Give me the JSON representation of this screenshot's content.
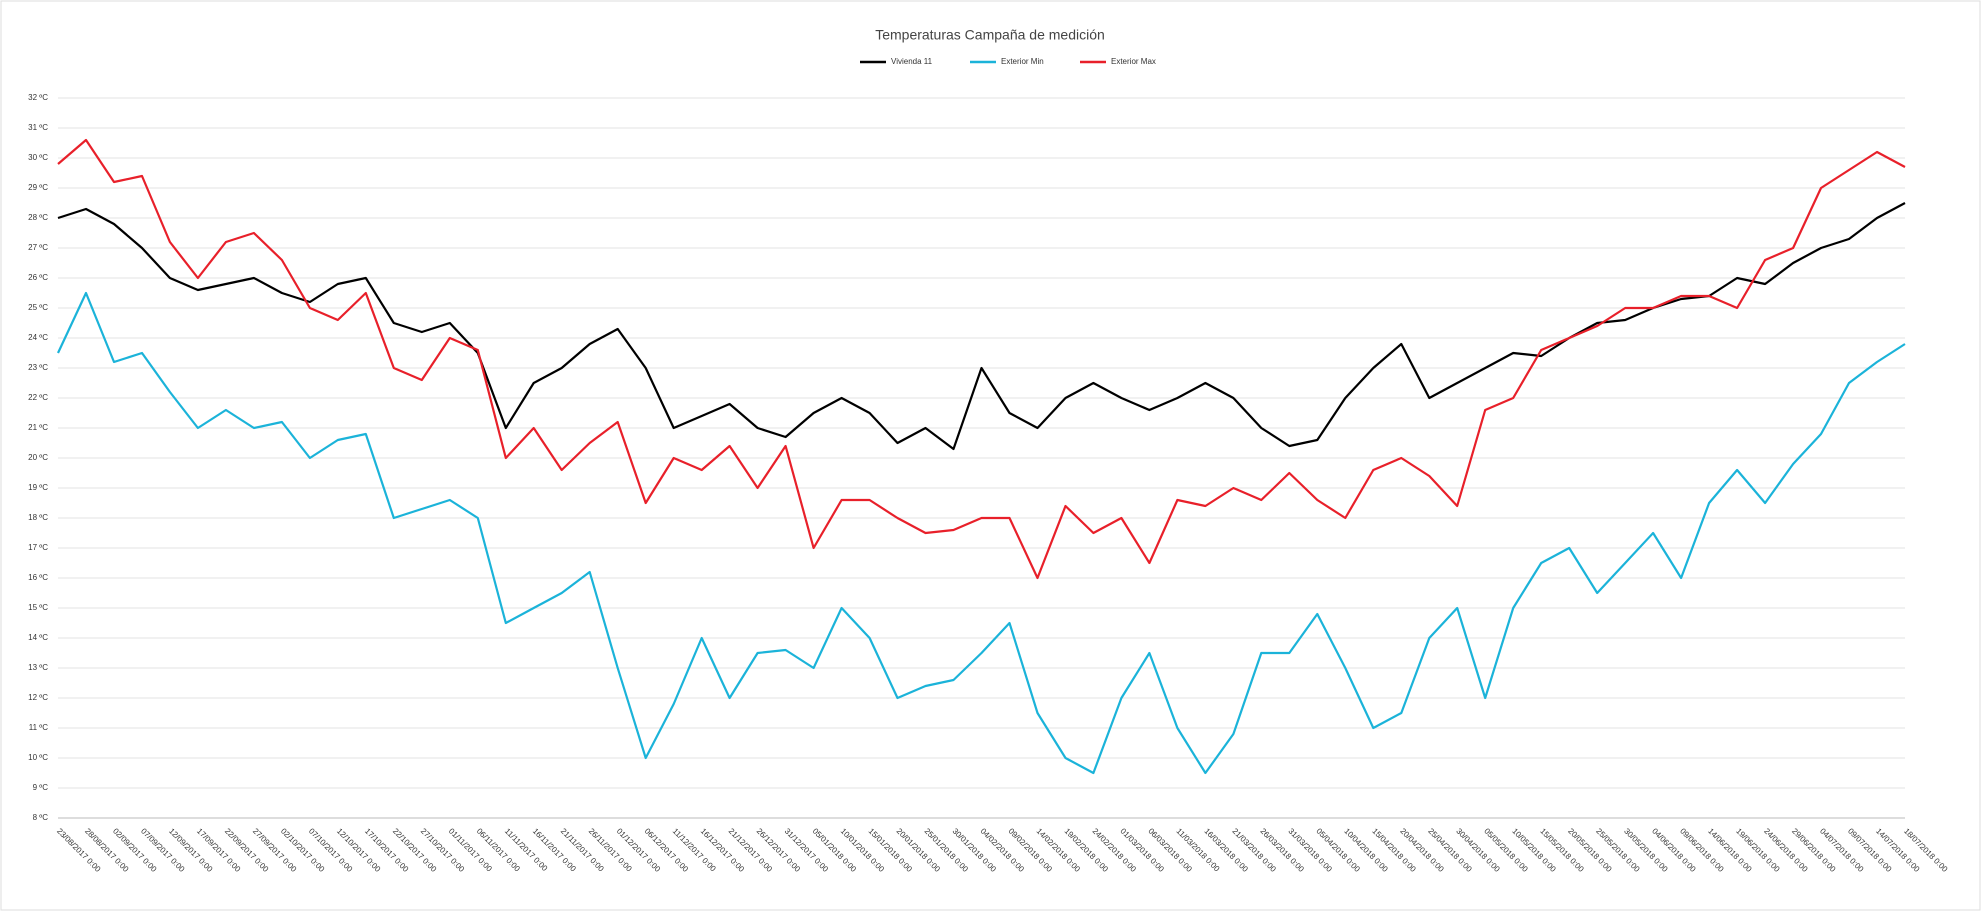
{
  "chart_data": {
    "type": "line",
    "title": "Temperaturas Campaña de medición",
    "categories": [
      "23/08/2017 0:00",
      "28/08/2017 0:00",
      "02/09/2017 0:00",
      "07/09/2017 0:00",
      "12/09/2017 0:00",
      "17/09/2017 0:00",
      "22/09/2017 0:00",
      "27/09/2017 0:00",
      "02/10/2017 0:00",
      "07/10/2017 0:00",
      "12/10/2017 0:00",
      "17/10/2017 0:00",
      "22/10/2017 0:00",
      "27/10/2017 0:00",
      "01/11/2017 0:00",
      "06/11/2017 0:00",
      "11/11/2017 0:00",
      "16/11/2017 0:00",
      "21/11/2017 0:00",
      "26/11/2017 0:00",
      "01/12/2017 0:00",
      "06/12/2017 0:00",
      "11/12/2017 0:00",
      "16/12/2017 0:00",
      "21/12/2017 0:00",
      "26/12/2017 0:00",
      "31/12/2017 0:00",
      "05/01/2018 0:00",
      "10/01/2018 0:00",
      "15/01/2018 0:00",
      "20/01/2018 0:00",
      "25/01/2018 0:00",
      "30/01/2018 0:00",
      "04/02/2018 0:00",
      "09/02/2018 0:00",
      "14/02/2018 0:00",
      "19/02/2018 0:00",
      "24/02/2018 0:00",
      "01/03/2018 0:00",
      "06/03/2018 0:00",
      "11/03/2018 0:00",
      "16/03/2018 0:00",
      "21/03/2018 0:00",
      "26/03/2018 0:00",
      "31/03/2018 0:00",
      "05/04/2018 0:00",
      "10/04/2018 0:00",
      "15/04/2018 0:00",
      "20/04/2018 0:00",
      "25/04/2018 0:00",
      "30/04/2018 0:00",
      "05/05/2018 0:00",
      "10/05/2018 0:00",
      "15/05/2018 0:00",
      "20/05/2018 0:00",
      "25/05/2018 0:00",
      "30/05/2018 0:00",
      "04/06/2018 0:00",
      "09/06/2018 0:00",
      "14/06/2018 0:00",
      "19/06/2018 0:00",
      "24/06/2018 0:00",
      "29/06/2018 0:00",
      "04/07/2018 0:00",
      "09/07/2018 0:00",
      "14/07/2018 0:00",
      "18/07/2018 0:00"
    ],
    "series": [
      {
        "name": "Vivienda 11",
        "color": "#000000",
        "values": [
          28,
          28.3,
          27.8,
          27,
          26,
          25.6,
          25.8,
          26,
          25.5,
          25.2,
          25.8,
          26,
          24.5,
          24.2,
          24.5,
          23.5,
          21,
          22.5,
          23,
          23.8,
          24.3,
          23,
          21,
          21.4,
          21.8,
          21,
          20.7,
          21.5,
          22,
          21.5,
          20.5,
          21,
          20.3,
          23,
          21.5,
          21,
          22,
          22.5,
          22,
          21.6,
          22,
          22.5,
          22,
          21,
          20.4,
          20.6,
          22,
          23,
          23.8,
          22,
          22.5,
          23,
          23.5,
          23.4,
          24,
          24.5,
          24.6,
          25,
          25.3,
          25.4,
          26,
          25.8,
          26.5,
          27,
          27.3,
          28,
          28.5
        ]
      },
      {
        "name": "Exterior Min",
        "color": "#1bb3d9",
        "values": [
          23.5,
          25.5,
          23.2,
          23.5,
          22.2,
          21,
          21.6,
          21,
          21.2,
          20,
          20.6,
          20.8,
          18,
          18.3,
          18.6,
          18,
          14.5,
          15,
          15.5,
          16.2,
          13,
          10,
          11.8,
          14,
          12,
          13.5,
          13.6,
          13,
          15,
          14,
          12,
          12.4,
          12.6,
          13.5,
          14.5,
          11.5,
          10,
          9.5,
          12,
          13.5,
          11,
          9.5,
          10.8,
          13.5,
          13.5,
          14.8,
          13,
          11,
          11.5,
          14,
          15,
          12,
          15,
          16.5,
          17,
          15.5,
          16.5,
          17.5,
          16,
          18.5,
          19.6,
          18.5,
          19.8,
          20.8,
          22.5,
          23.2,
          23.8
        ]
      },
      {
        "name": "Exterior Max",
        "color": "#e8202a",
        "values": [
          29.8,
          30.6,
          29.2,
          29.4,
          27.2,
          26,
          27.2,
          27.5,
          26.6,
          25,
          24.6,
          25.5,
          23,
          22.6,
          24,
          23.6,
          20,
          21,
          19.6,
          20.5,
          21.2,
          18.5,
          20,
          19.6,
          20.4,
          19,
          20.4,
          17,
          18.6,
          18.6,
          18,
          17.5,
          17.6,
          18,
          18,
          16,
          18.4,
          17.5,
          18,
          16.5,
          18.6,
          18.4,
          19,
          18.6,
          19.5,
          18.6,
          18,
          19.6,
          20,
          19.4,
          18.4,
          21.6,
          22,
          23.6,
          24,
          24.4,
          25,
          25,
          25.4,
          25.4,
          25,
          26.6,
          27,
          29,
          29.6,
          30.2,
          29.7
        ]
      }
    ],
    "ylim": [
      8,
      32
    ],
    "yticks": [
      {
        "value": 8,
        "label": "8 ºC"
      },
      {
        "value": 9,
        "label": "9 ºC"
      },
      {
        "value": 10,
        "label": "10 ºC"
      },
      {
        "value": 11,
        "label": "11 ºC"
      },
      {
        "value": 12,
        "label": "12 ºC"
      },
      {
        "value": 13,
        "label": "13 ºC"
      },
      {
        "value": 14,
        "label": "14 ºC"
      },
      {
        "value": 15,
        "label": "15 ºC"
      },
      {
        "value": 16,
        "label": "16 ºC"
      },
      {
        "value": 17,
        "label": "17 ºC"
      },
      {
        "value": 18,
        "label": "18 ºC"
      },
      {
        "value": 19,
        "label": "19 ºC"
      },
      {
        "value": 20,
        "label": "20 ºC"
      },
      {
        "value": 21,
        "label": "21 ºC"
      },
      {
        "value": 22,
        "label": "22 ºC"
      },
      {
        "value": 23,
        "label": "23 ºC"
      },
      {
        "value": 24,
        "label": "24 ºC"
      },
      {
        "value": 25,
        "label": "25 ºC"
      },
      {
        "value": 26,
        "label": "26 ºC"
      },
      {
        "value": 27,
        "label": "27 ºC"
      },
      {
        "value": 28,
        "label": "28 ºC"
      },
      {
        "value": 29,
        "label": "29 ºC"
      },
      {
        "value": 30,
        "label": "30 ºC"
      },
      {
        "value": 31,
        "label": "31 ºC"
      },
      {
        "value": 32,
        "label": "32 ºC"
      }
    ],
    "grid": true,
    "legend": "top"
  }
}
